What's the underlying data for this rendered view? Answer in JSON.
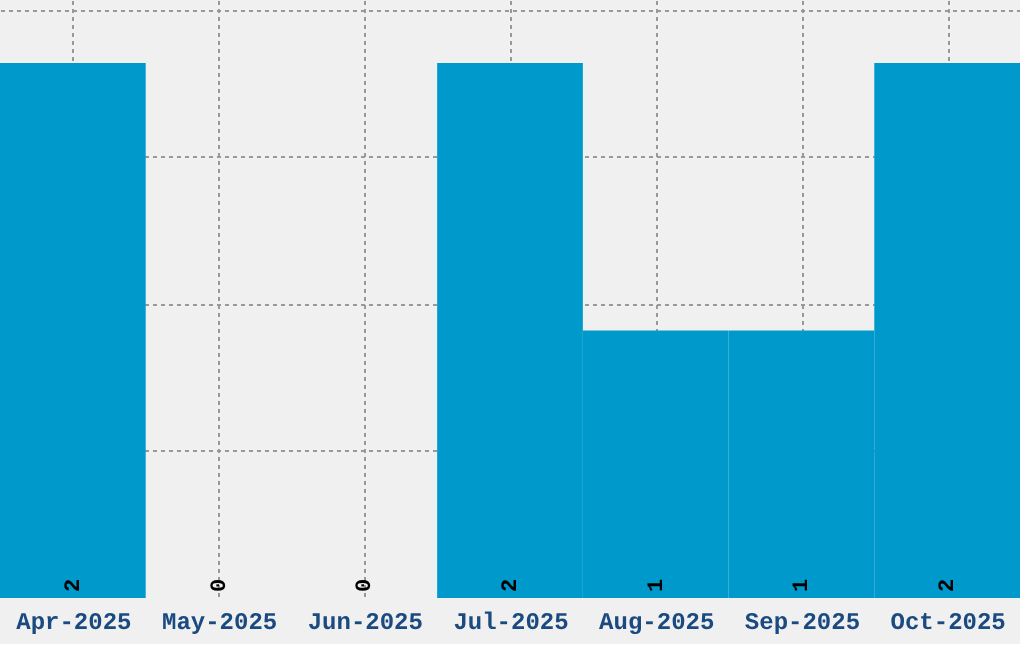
{
  "chart_data": {
    "type": "bar",
    "categories": [
      "Apr-2025",
      "May-2025",
      "Jun-2025",
      "Jul-2025",
      "Aug-2025",
      "Sep-2025",
      "Oct-2025"
    ],
    "values": [
      2,
      0,
      0,
      2,
      1,
      1,
      2
    ],
    "color": "#0099cc",
    "data_labels": true,
    "grid": true,
    "tick_labels": "x",
    "ylim": [
      0,
      2.235
    ],
    "yticks": [
      {
        "value": 0.55,
        "label": null
      },
      {
        "value": 1.1,
        "label": null
      },
      {
        "value": 1.65,
        "label": null
      },
      {
        "value": 2.2,
        "label": null
      }
    ]
  }
}
